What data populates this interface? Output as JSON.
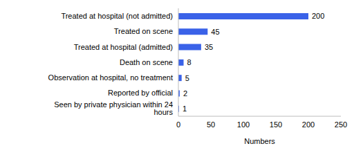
{
  "chart_data": {
    "type": "bar",
    "orientation": "horizontal",
    "x_label": "Numbers",
    "categories": [
      "Treated at hospital (not admitted)",
      "Treated on scene",
      "Treated at hospital (admitted)",
      "Death on scene",
      "Observation at hospital, no treatment",
      "Reported by official",
      "Seen by private physician within 24 hours"
    ],
    "values": [
      200,
      45,
      35,
      8,
      5,
      2,
      1
    ],
    "color": "#3a62e8",
    "xlim": [
      0,
      250
    ],
    "xticks": [
      0,
      50,
      100,
      150,
      200,
      250
    ],
    "grid": false,
    "data_labels": true
  }
}
